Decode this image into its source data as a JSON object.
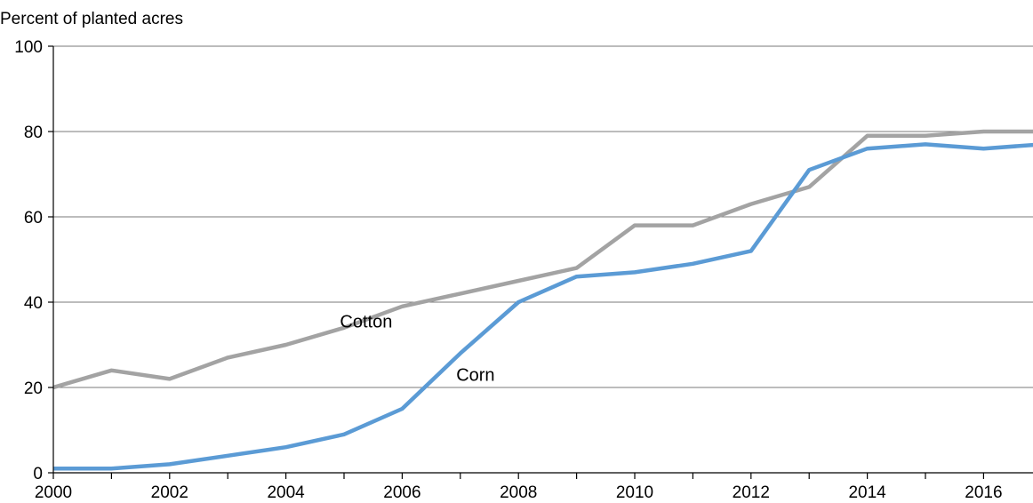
{
  "chart_data": {
    "type": "line",
    "ylabel": "Percent of planted acres",
    "ylim": [
      0,
      100
    ],
    "xlim": [
      2000,
      2016.85
    ],
    "y_ticks": [
      0,
      20,
      40,
      60,
      80,
      100
    ],
    "x_ticks": [
      2000,
      2002,
      2004,
      2006,
      2008,
      2010,
      2012,
      2014,
      2016
    ],
    "grid": "horizontal",
    "series": [
      {
        "name": "Cotton",
        "color": "#a3a3a3",
        "x": [
          2000,
          2001,
          2002,
          2003,
          2004,
          2005,
          2006,
          2007,
          2008,
          2009,
          2010,
          2011,
          2012,
          2013,
          2014,
          2015,
          2016,
          2017
        ],
        "values": [
          20,
          24,
          22,
          27,
          30,
          34,
          39,
          42,
          45,
          48,
          58,
          58,
          63,
          67,
          79,
          79,
          80,
          80
        ]
      },
      {
        "name": "Corn",
        "color": "#5b9bd5",
        "x": [
          2000,
          2001,
          2002,
          2003,
          2004,
          2005,
          2006,
          2007,
          2008,
          2009,
          2010,
          2011,
          2012,
          2013,
          2014,
          2015,
          2016,
          2017
        ],
        "values": [
          1,
          1,
          2,
          4,
          6,
          9,
          15,
          28,
          40,
          46,
          47,
          49,
          52,
          71,
          76,
          77,
          76,
          77
        ]
      }
    ]
  }
}
